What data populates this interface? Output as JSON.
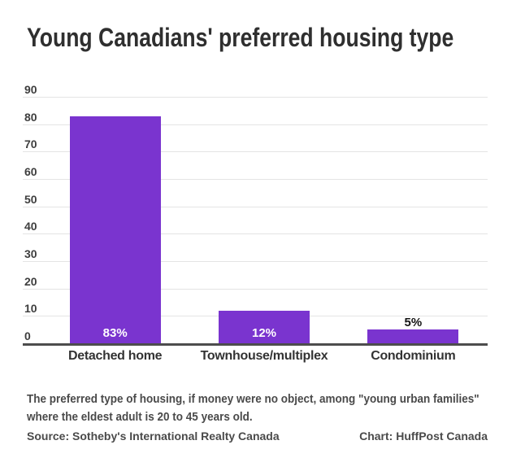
{
  "chart_data": {
    "type": "bar",
    "title": "Young Canadians' preferred housing type",
    "categories": [
      "Detached home",
      "Townhouse/multiplex",
      "Condominium"
    ],
    "values": [
      83,
      12,
      5
    ],
    "value_labels": [
      "83%",
      "12%",
      "5%"
    ],
    "y_ticks": [
      0,
      10,
      20,
      30,
      40,
      50,
      60,
      70,
      80,
      90
    ],
    "ylim": [
      0,
      90
    ],
    "grid": true,
    "legend": "none",
    "bar_color": "#7a34cf",
    "note": "The preferred type of housing, if money were no object, among \"young urban families\" where the eldest adult is 20 to 45 years old.",
    "source": "Source: Sotheby's International Realty Canada",
    "credit": "Chart: HuffPost Canada"
  }
}
